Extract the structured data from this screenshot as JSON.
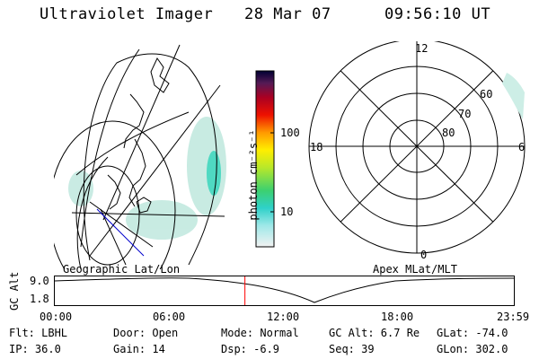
{
  "header": {
    "instrument": "Ultraviolet Imager",
    "date": "28 Mar 07",
    "time": "09:56:10 UT"
  },
  "colorbar": {
    "unit_label": "photon cm⁻²s⁻¹",
    "ticks": [
      "100",
      "10"
    ]
  },
  "polar_plot": {
    "mlt_labels": {
      "top": "12",
      "left": "18",
      "right": "6",
      "bottom": "0"
    },
    "lat_labels": [
      "60",
      "70",
      "80"
    ]
  },
  "map_labels": {
    "left": "Geographic Lat/Lon",
    "right": "Apex MLat/MLT"
  },
  "altitude_track": {
    "ylabel": "GC Alt",
    "y_ticks": [
      "9.0",
      "1.8"
    ],
    "x_ticks": [
      "00:00",
      "06:00",
      "12:00",
      "18:00",
      "23:59"
    ],
    "current_time_hours": 9.94
  },
  "status": {
    "flt": "Flt: LBHL",
    "ip": "IP: 36.0",
    "door": "Door: Open",
    "gain": "Gain: 14",
    "mode": "Mode: Normal",
    "dsp": "Dsp:   -6.9",
    "gc_alt": "GC Alt: 6.7 Re",
    "seq": "Seq: 39",
    "glat": "GLat: -74.0",
    "glon": "GLon: 302.0"
  },
  "colors": {
    "marker": "#ff0000",
    "track_line": "#0000cc",
    "aurora": "#7fd6c4"
  }
}
